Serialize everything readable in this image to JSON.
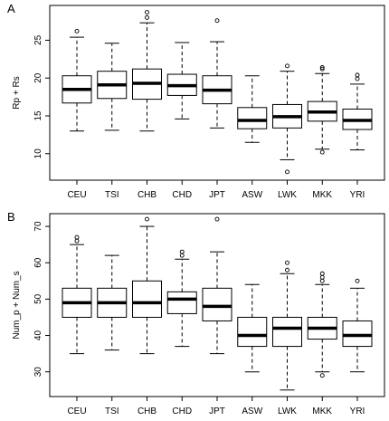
{
  "chart_data": [
    {
      "type": "boxplot",
      "panel_letter": "A",
      "ylabel": "Rp + Rs",
      "ylim": [
        6.5,
        29.6
      ],
      "yticks": [
        10,
        15,
        20,
        25
      ],
      "categories": [
        "CEU",
        "TSI",
        "CHB",
        "CHD",
        "JPT",
        "ASW",
        "LWK",
        "MKK",
        "YRI"
      ],
      "boxes": [
        {
          "category": "CEU",
          "whisker_low": 13.0,
          "q1": 16.7,
          "median": 18.5,
          "q3": 20.3,
          "whisker_high": 25.4,
          "outliers": [
            26.2
          ]
        },
        {
          "category": "TSI",
          "whisker_low": 13.1,
          "q1": 17.3,
          "median": 19.1,
          "q3": 20.9,
          "whisker_high": 24.6,
          "outliers": []
        },
        {
          "category": "CHB",
          "whisker_low": 13.0,
          "q1": 17.2,
          "median": 19.3,
          "q3": 21.2,
          "whisker_high": 27.3,
          "outliers": [
            28.0,
            28.7
          ]
        },
        {
          "category": "CHD",
          "whisker_low": 14.6,
          "q1": 17.7,
          "median": 19.0,
          "q3": 20.5,
          "whisker_high": 24.7,
          "outliers": []
        },
        {
          "category": "JPT",
          "whisker_low": 13.4,
          "q1": 16.6,
          "median": 18.4,
          "q3": 20.3,
          "whisker_high": 24.8,
          "outliers": [
            27.6
          ]
        },
        {
          "category": "ASW",
          "whisker_low": 11.5,
          "q1": 13.3,
          "median": 14.4,
          "q3": 16.1,
          "whisker_high": 20.3,
          "outliers": []
        },
        {
          "category": "LWK",
          "whisker_low": 9.2,
          "q1": 13.4,
          "median": 14.9,
          "q3": 16.5,
          "whisker_high": 20.9,
          "outliers": [
            21.6,
            7.6
          ]
        },
        {
          "category": "MKK",
          "whisker_low": 10.6,
          "q1": 14.3,
          "median": 15.5,
          "q3": 16.9,
          "whisker_high": 20.6,
          "outliers": [
            21.2,
            21.4,
            10.2
          ]
        },
        {
          "category": "YRI",
          "whisker_low": 10.5,
          "q1": 13.2,
          "median": 14.4,
          "q3": 15.9,
          "whisker_high": 19.2,
          "outliers": [
            19.9,
            20.4
          ]
        }
      ]
    },
    {
      "type": "boxplot",
      "panel_letter": "B",
      "ylabel": "Num_p + Num_s",
      "ylim": [
        23.2,
        73.5
      ],
      "yticks": [
        30,
        40,
        50,
        60,
        70
      ],
      "categories": [
        "CEU",
        "TSI",
        "CHB",
        "CHD",
        "JPT",
        "ASW",
        "LWK",
        "MKK",
        "YRI"
      ],
      "boxes": [
        {
          "category": "CEU",
          "whisker_low": 35,
          "q1": 45,
          "median": 49,
          "q3": 53,
          "whisker_high": 65,
          "outliers": [
            66,
            67
          ]
        },
        {
          "category": "TSI",
          "whisker_low": 36,
          "q1": 45,
          "median": 49,
          "q3": 53,
          "whisker_high": 62,
          "outliers": []
        },
        {
          "category": "CHB",
          "whisker_low": 35,
          "q1": 45,
          "median": 49,
          "q3": 55,
          "whisker_high": 70,
          "outliers": [
            72
          ]
        },
        {
          "category": "CHD",
          "whisker_low": 37,
          "q1": 46,
          "median": 50,
          "q3": 52,
          "whisker_high": 61,
          "outliers": [
            62,
            63
          ]
        },
        {
          "category": "JPT",
          "whisker_low": 35,
          "q1": 44,
          "median": 48,
          "q3": 53,
          "whisker_high": 63,
          "outliers": [
            72
          ]
        },
        {
          "category": "ASW",
          "whisker_low": 30,
          "q1": 37,
          "median": 40,
          "q3": 45,
          "whisker_high": 54,
          "outliers": []
        },
        {
          "category": "LWK",
          "whisker_low": 25,
          "q1": 37,
          "median": 42,
          "q3": 45,
          "whisker_high": 57,
          "outliers": [
            58,
            60
          ]
        },
        {
          "category": "MKK",
          "whisker_low": 30,
          "q1": 39,
          "median": 42,
          "q3": 45,
          "whisker_high": 54,
          "outliers": [
            55,
            56,
            57,
            29
          ]
        },
        {
          "category": "YRI",
          "whisker_low": 30,
          "q1": 37,
          "median": 40,
          "q3": 44,
          "whisker_high": 53,
          "outliers": [
            55
          ]
        }
      ]
    }
  ]
}
